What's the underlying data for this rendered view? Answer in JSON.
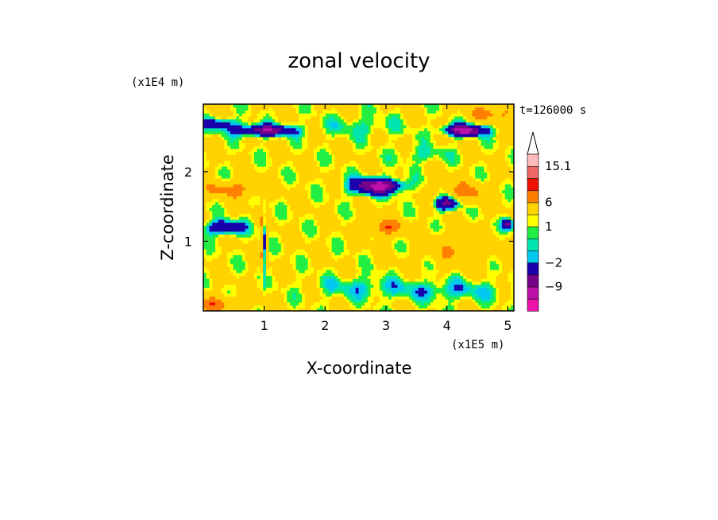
{
  "chart_data": {
    "type": "heatmap",
    "title": "zonal velocity",
    "xlabel": "X-coordinate",
    "ylabel": "Z-coordinate",
    "x_unit": "(x1E5 m)",
    "y_unit": "(x1E4 m)",
    "time_label": "t=126000 s",
    "xlim": [
      0,
      5.1
    ],
    "ylim": [
      0,
      2.97
    ],
    "x_ticks": [
      {
        "value": 1,
        "label": "1"
      },
      {
        "value": 2,
        "label": "2"
      },
      {
        "value": 3,
        "label": "3"
      },
      {
        "value": 4,
        "label": "4"
      },
      {
        "value": 5,
        "label": "5"
      }
    ],
    "y_ticks": [
      {
        "value": 1,
        "label": "1"
      },
      {
        "value": 2,
        "label": "2"
      }
    ],
    "colorbar": {
      "levels": [
        -15.1,
        -12,
        -9,
        -6,
        -2,
        -1,
        0,
        1,
        2,
        6,
        9,
        12,
        15.1
      ],
      "colors": [
        "#ee11aa",
        "#bb11aa",
        "#770088",
        "#1a00aa",
        "#00c8f0",
        "#00e5b0",
        "#22ee44",
        "#ffff00",
        "#ffd200",
        "#ff7f00",
        "#ee1100",
        "#ee6666",
        "#ffbbbb"
      ],
      "labels": [
        {
          "value": 15.1,
          "label": "15.1"
        },
        {
          "value": 6,
          "label": "6"
        },
        {
          "value": 1,
          "label": "1"
        },
        {
          "value": -2,
          "label": "−2"
        },
        {
          "value": -9,
          "label": "−9"
        }
      ]
    }
  }
}
